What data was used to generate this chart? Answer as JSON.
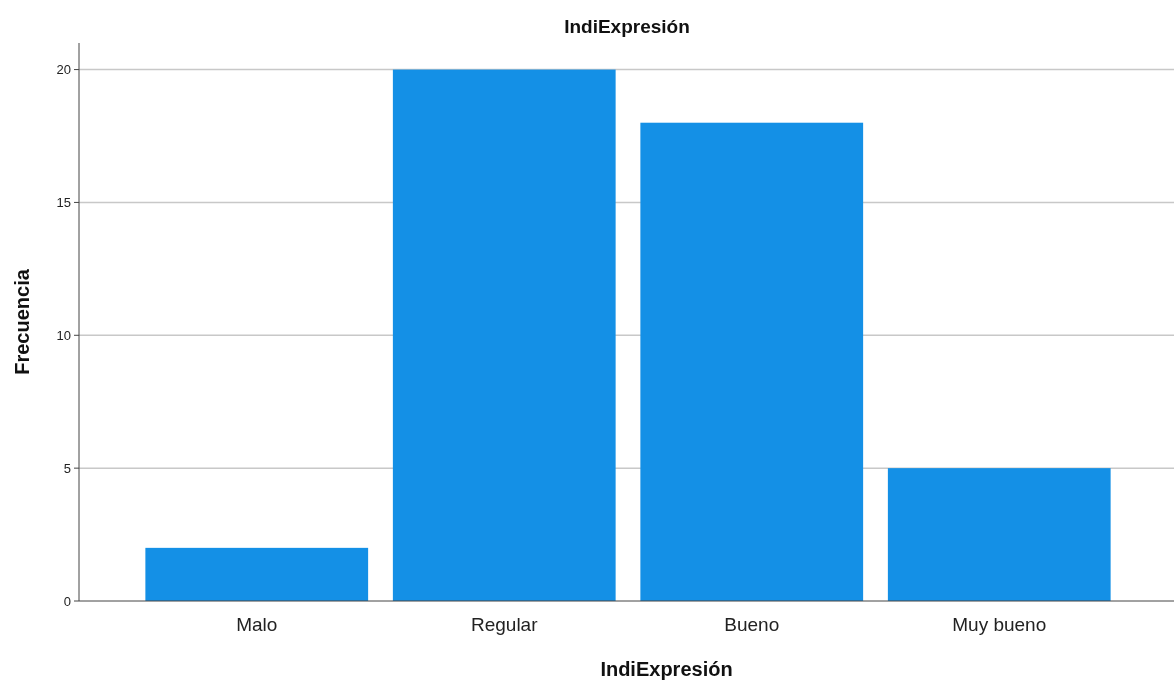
{
  "chart_data": {
    "type": "bar",
    "title": "IndiExpresión",
    "xlabel": "IndiExpresión",
    "ylabel": "Frecuencia",
    "categories": [
      "Malo",
      "Regular",
      "Bueno",
      "Muy bueno"
    ],
    "values": [
      2,
      20,
      18,
      5
    ],
    "color": "#1490e6",
    "ylim": [
      0,
      21
    ],
    "yticks": [
      0,
      5,
      10,
      15,
      20
    ],
    "grid": "y"
  }
}
